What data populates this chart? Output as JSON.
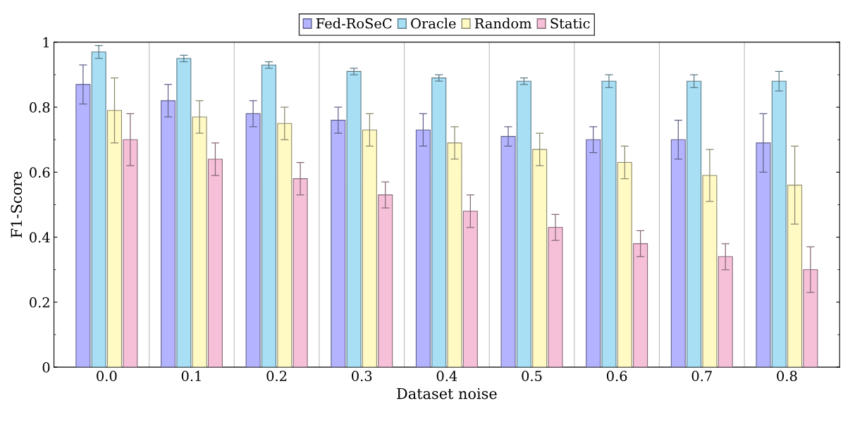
{
  "chart_data": {
    "type": "bar",
    "xlabel": "Dataset noise",
    "ylabel": "F1-Score",
    "categories": [
      "0.0",
      "0.1",
      "0.2",
      "0.3",
      "0.4",
      "0.5",
      "0.6",
      "0.7",
      "0.8"
    ],
    "series": [
      {
        "name": "Fed-RoSeC",
        "color": "#b3b3ff",
        "values": [
          0.87,
          0.82,
          0.78,
          0.76,
          0.73,
          0.71,
          0.7,
          0.7,
          0.69
        ],
        "errors": [
          0.06,
          0.05,
          0.04,
          0.04,
          0.05,
          0.03,
          0.04,
          0.06,
          0.09
        ]
      },
      {
        "name": "Oracle",
        "color": "#a8dff5",
        "values": [
          0.97,
          0.95,
          0.93,
          0.91,
          0.89,
          0.88,
          0.88,
          0.88,
          0.88
        ],
        "errors": [
          0.02,
          0.01,
          0.01,
          0.01,
          0.01,
          0.01,
          0.02,
          0.02,
          0.03
        ]
      },
      {
        "name": "Random",
        "color": "#fff9c4",
        "values": [
          0.79,
          0.77,
          0.75,
          0.73,
          0.69,
          0.67,
          0.63,
          0.59,
          0.56
        ],
        "errors": [
          0.1,
          0.05,
          0.05,
          0.05,
          0.05,
          0.05,
          0.05,
          0.08,
          0.12
        ]
      },
      {
        "name": "Static",
        "color": "#f5c0d8",
        "values": [
          0.7,
          0.64,
          0.58,
          0.53,
          0.48,
          0.43,
          0.38,
          0.34,
          0.3
        ],
        "errors": [
          0.08,
          0.05,
          0.05,
          0.04,
          0.05,
          0.04,
          0.04,
          0.04,
          0.07
        ]
      }
    ],
    "ylim": [
      0,
      1
    ],
    "yticks": [
      0,
      0.2,
      0.4,
      0.6,
      0.8,
      1
    ],
    "grid": "x",
    "legend": "top"
  }
}
